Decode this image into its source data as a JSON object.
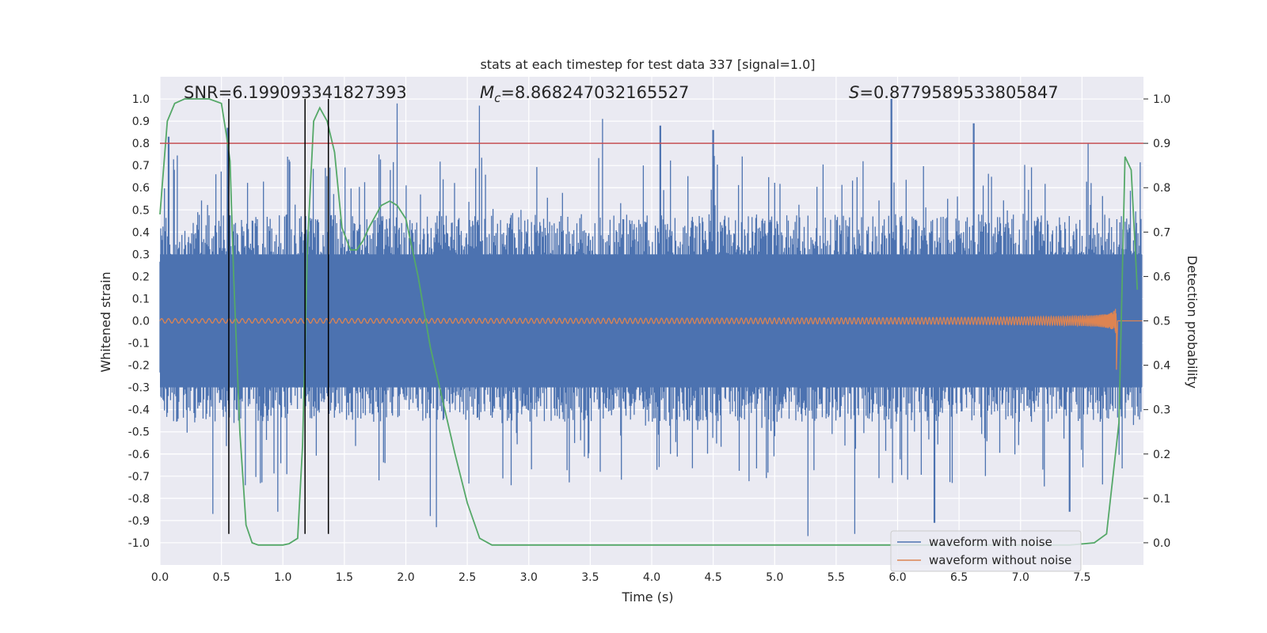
{
  "chart_data": {
    "type": "line",
    "title": "stats at each timestep for test data 337 [signal=1.0]",
    "xlabel": "Time (s)",
    "ylabel": "Whitened strain",
    "y2label": "Detection probability",
    "xlim": [
      0,
      8
    ],
    "ylim": [
      -1.1,
      1.1
    ],
    "y2lim": [
      -0.05,
      1.05
    ],
    "xticks": [
      "0.0",
      "0.5",
      "1.0",
      "1.5",
      "2.0",
      "2.5",
      "3.0",
      "3.5",
      "4.0",
      "4.5",
      "5.0",
      "5.5",
      "6.0",
      "6.5",
      "7.0",
      "7.5"
    ],
    "yticks": [
      "1.0",
      "0.9",
      "0.8",
      "0.7",
      "0.6",
      "0.5",
      "0.4",
      "0.3",
      "0.2",
      "0.1",
      "0.0",
      "-0.1",
      "-0.2",
      "-0.3",
      "-0.4",
      "-0.5",
      "-0.6",
      "-0.7",
      "-0.8",
      "-0.9",
      "-1.0"
    ],
    "y2ticks": [
      "1.0",
      "0.9",
      "0.8",
      "0.7",
      "0.6",
      "0.5",
      "0.4",
      "0.3",
      "0.2",
      "0.1",
      "0.0"
    ],
    "grid": true,
    "legend_position": "bottom-right",
    "annotations": {
      "snr_label": "SNR=6.199093341827393",
      "mc_label": "M",
      "mc_sub": "c",
      "mc_value": "=8.868247032165527",
      "s_label": "S",
      "s_value": "=0.8779589533805847"
    },
    "threshold": 0.8,
    "threshold_color": "#c44e52",
    "vertical_markers": [
      0.56,
      1.18,
      1.37
    ],
    "series": [
      {
        "name": "waveform with noise",
        "color": "#4c72b0",
        "envelope_top_typical": 0.37,
        "envelope_bottom_typical": -0.35,
        "peaks": [
          [
            0.07,
            0.83
          ],
          [
            0.55,
            0.87
          ],
          [
            1.04,
            0.74
          ],
          [
            1.78,
            0.75
          ],
          [
            1.93,
            0.98
          ],
          [
            2.6,
            0.97
          ],
          [
            3.6,
            0.91
          ],
          [
            4.07,
            0.88
          ],
          [
            4.5,
            0.86
          ],
          [
            5.95,
            1.0
          ],
          [
            6.62,
            0.89
          ],
          [
            7.55,
            0.8
          ]
        ],
        "troughs": [
          [
            0.43,
            -0.87
          ],
          [
            0.96,
            -0.86
          ],
          [
            2.2,
            -0.88
          ],
          [
            2.25,
            -0.93
          ],
          [
            5.27,
            -0.97
          ],
          [
            5.65,
            -0.96
          ],
          [
            6.3,
            -0.91
          ],
          [
            7.4,
            -0.86
          ]
        ]
      },
      {
        "name": "waveform without noise",
        "color": "#dd8452",
        "description_points": {
          "t_start": 0.0,
          "t_merger": 7.78,
          "amp_start": 0.01,
          "amp_peak": 0.17,
          "amp_trough": -0.22
        }
      },
      {
        "name": "Detection probability",
        "color": "#55a868",
        "axis": "right",
        "x": [
          0.0,
          0.06,
          0.12,
          0.2,
          0.3,
          0.4,
          0.5,
          0.54,
          0.57,
          0.6,
          0.65,
          0.7,
          0.75,
          0.8,
          0.9,
          1.0,
          1.05,
          1.12,
          1.16,
          1.2,
          1.25,
          1.3,
          1.36,
          1.42,
          1.48,
          1.55,
          1.6,
          1.65,
          1.7,
          1.8,
          1.87,
          1.93,
          2.0,
          2.1,
          2.2,
          2.3,
          2.4,
          2.5,
          2.6,
          2.7,
          3.0,
          4.0,
          5.0,
          6.0,
          7.0,
          7.4,
          7.6,
          7.7,
          7.8,
          7.85,
          7.9,
          7.95
        ],
        "y": [
          0.74,
          0.95,
          0.99,
          1.0,
          1.0,
          1.0,
          0.99,
          0.92,
          0.86,
          0.6,
          0.25,
          0.04,
          0.0,
          -0.005,
          -0.005,
          -0.005,
          -0.002,
          0.01,
          0.22,
          0.67,
          0.95,
          0.98,
          0.95,
          0.88,
          0.71,
          0.66,
          0.66,
          0.68,
          0.71,
          0.76,
          0.77,
          0.76,
          0.73,
          0.6,
          0.44,
          0.32,
          0.2,
          0.09,
          0.01,
          -0.005,
          -0.005,
          -0.005,
          -0.005,
          -0.005,
          -0.005,
          -0.005,
          0.0,
          0.02,
          0.27,
          0.87,
          0.84,
          0.57
        ]
      }
    ]
  }
}
